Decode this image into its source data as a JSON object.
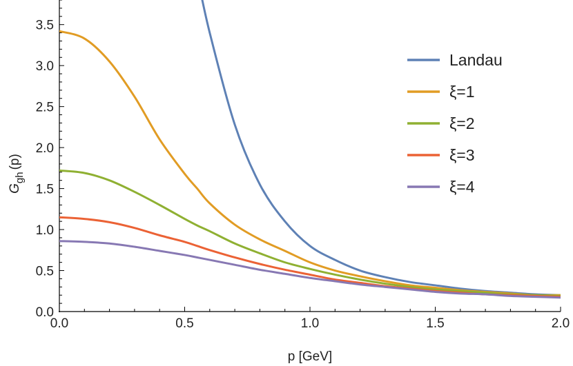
{
  "chart_data": {
    "type": "line",
    "title": "",
    "xlabel": "p [GeV]",
    "ylabel": {
      "main": "G",
      "sub": "gh",
      "suffix": "(p)"
    },
    "xlim": [
      0,
      2
    ],
    "ylim": [
      0,
      3.8
    ],
    "x_ticks": [
      "0.0",
      "0.5",
      "1.0",
      "1.5",
      "2.0"
    ],
    "y_ticks": [
      "0.0",
      "0.5",
      "1.0",
      "1.5",
      "2.0",
      "2.5",
      "3.0",
      "3.5"
    ],
    "grid": false,
    "legend_position": "right",
    "x": [
      0.0,
      0.1,
      0.2,
      0.3,
      0.4,
      0.5,
      0.55,
      0.6,
      0.7,
      0.8,
      0.9,
      1.0,
      1.1,
      1.2,
      1.3,
      1.4,
      1.5,
      1.6,
      1.7,
      1.8,
      1.9,
      2.0
    ],
    "series": [
      {
        "name": "Landau",
        "color": "#5e81b5",
        "values": [
          null,
          null,
          null,
          null,
          null,
          null,
          4.1,
          3.4,
          2.28,
          1.55,
          1.1,
          0.8,
          0.63,
          0.5,
          0.42,
          0.36,
          0.32,
          0.28,
          0.25,
          0.23,
          0.21,
          0.2
        ]
      },
      {
        "name": "ξ=1",
        "color": "#e19c24",
        "values": [
          3.42,
          3.33,
          3.05,
          2.62,
          2.1,
          1.68,
          1.5,
          1.32,
          1.06,
          0.88,
          0.74,
          0.6,
          0.5,
          0.43,
          0.37,
          0.32,
          0.29,
          0.26,
          0.24,
          0.22,
          0.2,
          0.2
        ]
      },
      {
        "name": "ξ=2",
        "color": "#8fb032",
        "values": [
          1.72,
          1.69,
          1.6,
          1.46,
          1.3,
          1.13,
          1.05,
          0.98,
          0.83,
          0.71,
          0.6,
          0.52,
          0.45,
          0.39,
          0.34,
          0.3,
          0.27,
          0.25,
          0.23,
          0.21,
          0.2,
          0.19
        ]
      },
      {
        "name": "ξ=3",
        "color": "#eb6235",
        "values": [
          1.15,
          1.13,
          1.09,
          1.02,
          0.93,
          0.85,
          0.8,
          0.75,
          0.66,
          0.58,
          0.51,
          0.45,
          0.39,
          0.35,
          0.31,
          0.28,
          0.25,
          0.23,
          0.21,
          0.2,
          0.19,
          0.18
        ]
      },
      {
        "name": "ξ=4",
        "color": "#8778b3",
        "values": [
          0.86,
          0.85,
          0.83,
          0.79,
          0.74,
          0.69,
          0.66,
          0.63,
          0.57,
          0.51,
          0.46,
          0.41,
          0.37,
          0.33,
          0.3,
          0.27,
          0.24,
          0.22,
          0.21,
          0.19,
          0.18,
          0.17
        ]
      }
    ]
  }
}
